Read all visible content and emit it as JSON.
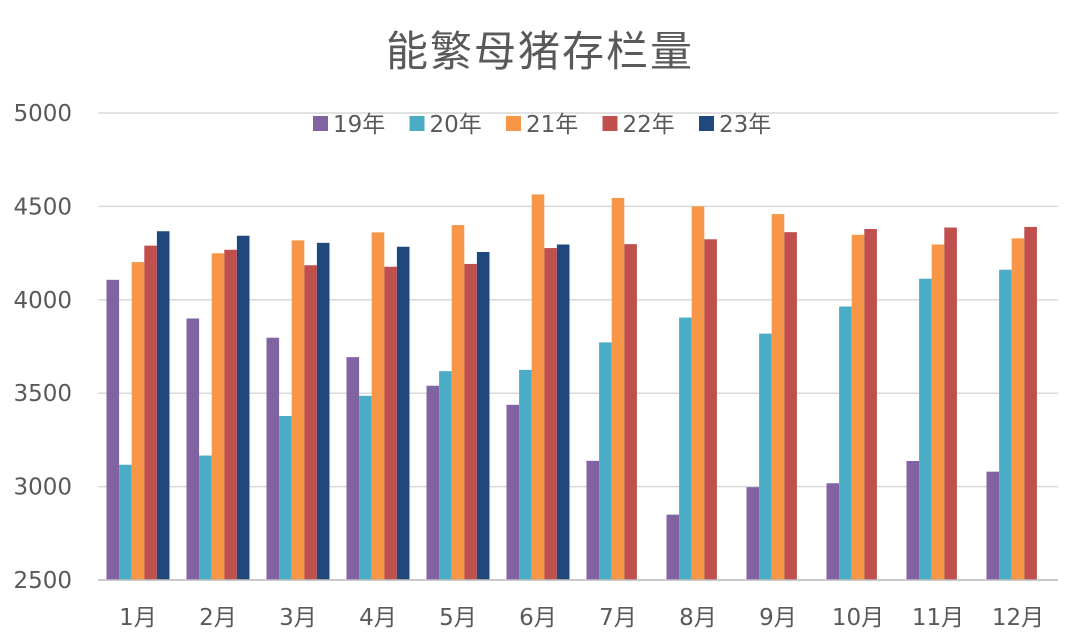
{
  "chart_data": {
    "type": "bar",
    "title": "能繁母猪存栏量",
    "xlabel": "",
    "ylabel": "",
    "ylim": [
      2500,
      5000
    ],
    "yticks": [
      2500,
      3000,
      3500,
      4000,
      4500,
      5000
    ],
    "grid": true,
    "legend_position": "top",
    "categories": [
      "1月",
      "2月",
      "3月",
      "4月",
      "5月",
      "6月",
      "7月",
      "8月",
      "9月",
      "10月",
      "11月",
      "12月"
    ],
    "series": [
      {
        "name": "19年",
        "color": "#8064A2",
        "values": [
          4107,
          3900,
          3797,
          3693,
          3540,
          3438,
          3138,
          2850,
          2997,
          3018,
          3137,
          3080
        ]
      },
      {
        "name": "20年",
        "color": "#4BACC6",
        "values": [
          3117,
          3166,
          3378,
          3486,
          3618,
          3625,
          3772,
          3905,
          3819,
          3964,
          4113,
          4161
        ]
      },
      {
        "name": "21年",
        "color": "#F79646",
        "values": [
          4202,
          4249,
          4318,
          4361,
          4400,
          4564,
          4545,
          4500,
          4459,
          4348,
          4296,
          4329
        ]
      },
      {
        "name": "22年",
        "color": "#C0504D",
        "values": [
          4290,
          4268,
          4185,
          4177,
          4192,
          4277,
          4298,
          4324,
          4362,
          4379,
          4387,
          4390
        ]
      },
      {
        "name": "23年",
        "color": "#1F497D",
        "values": [
          4367,
          4343,
          4305,
          4284,
          4256,
          4296,
          null,
          null,
          null,
          null,
          null,
          null
        ]
      }
    ]
  }
}
